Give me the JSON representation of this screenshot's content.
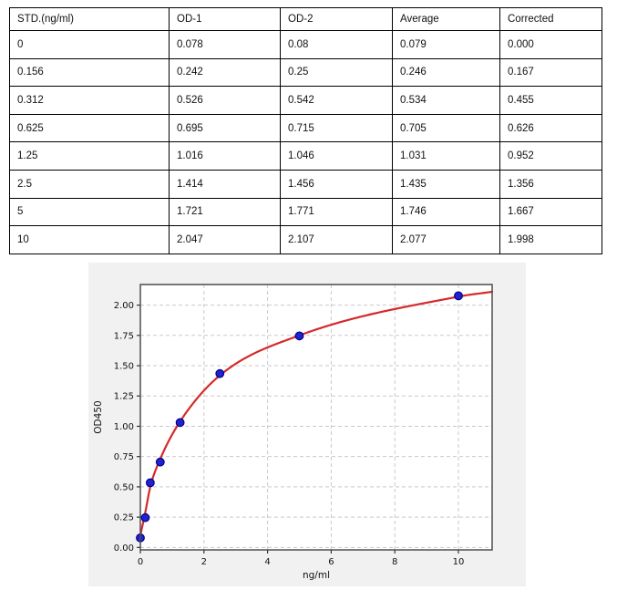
{
  "table": {
    "headers": [
      "STD.(ng/ml)",
      "OD-1",
      "OD-2",
      "Average",
      "Corrected"
    ],
    "rows": [
      [
        "0",
        "0.078",
        "0.08",
        "0.079",
        "0.000"
      ],
      [
        "0.156",
        "0.242",
        "0.25",
        "0.246",
        "0.167"
      ],
      [
        "0.312",
        "0.526",
        "0.542",
        "0.534",
        "0.455"
      ],
      [
        "0.625",
        "0.695",
        "0.715",
        "0.705",
        "0.626"
      ],
      [
        "1.25",
        "1.016",
        "1.046",
        "1.031",
        "0.952"
      ],
      [
        "2.5",
        "1.414",
        "1.456",
        "1.435",
        "1.356"
      ],
      [
        "5",
        "1.721",
        "1.771",
        "1.746",
        "1.667"
      ],
      [
        "10",
        "2.047",
        "2.107",
        "2.077",
        "1.998"
      ]
    ]
  },
  "chart_data": {
    "type": "scatter",
    "series": [
      {
        "name": "standards",
        "x": [
          0,
          0.156,
          0.312,
          0.625,
          1.25,
          2.5,
          5,
          10
        ],
        "y": [
          0.079,
          0.246,
          0.534,
          0.705,
          1.031,
          1.435,
          1.746,
          2.077
        ]
      }
    ],
    "fit_curve": {
      "model": "4PL-fit",
      "anchor_points": [
        [
          0,
          0.1
        ],
        [
          0.156,
          0.29
        ],
        [
          0.312,
          0.5
        ],
        [
          0.625,
          0.73
        ],
        [
          1.25,
          1.04
        ],
        [
          2.5,
          1.42
        ],
        [
          5,
          1.75
        ],
        [
          10,
          2.07
        ],
        [
          11.06,
          2.11
        ]
      ]
    },
    "title": "",
    "xlabel": "ng/ml",
    "ylabel": "OD450",
    "xlim": [
      0,
      11.06
    ],
    "ylim": [
      -0.02,
      2.17
    ],
    "xticks": [
      0,
      2,
      4,
      6,
      8,
      10
    ],
    "xtick_labels": [
      "0",
      "2",
      "4",
      "6",
      "8",
      "10"
    ],
    "yticks": [
      0,
      0.25,
      0.5,
      0.75,
      1,
      1.25,
      1.5,
      1.75,
      2
    ],
    "ytick_labels": [
      "0.00",
      "0.25",
      "0.50",
      "0.75",
      "1.00",
      "1.25",
      "1.50",
      "1.75",
      "2.00"
    ],
    "grid": true,
    "legend": false,
    "colors": {
      "figure_bg": "#f1f1f1",
      "plot_bg": "#ffffff",
      "grid": "#c9c9c9",
      "axis": "#4d4d4d",
      "tick": "#333333",
      "text": "#111111",
      "curve": "#d42a2a",
      "point_fill": "#2222cc",
      "point_edge": "#00008b"
    }
  }
}
